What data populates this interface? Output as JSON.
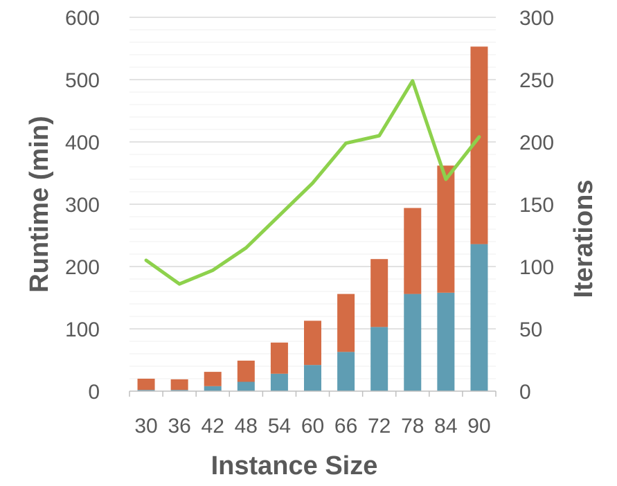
{
  "chart_data": {
    "type": "bar",
    "stacked": true,
    "categories": [
      "30",
      "36",
      "42",
      "48",
      "54",
      "60",
      "66",
      "72",
      "78",
      "84",
      "90"
    ],
    "series": [
      {
        "kind": "bar",
        "axis": "left",
        "color": "#5f9db3",
        "values": [
          2,
          2,
          8,
          15,
          28,
          42,
          63,
          103,
          156,
          158,
          236
        ]
      },
      {
        "kind": "bar",
        "axis": "left",
        "color": "#d46c45",
        "values": [
          18,
          17,
          23,
          34,
          50,
          71,
          93,
          109,
          138,
          204,
          317
        ]
      },
      {
        "kind": "line",
        "axis": "right",
        "color": "#8dd14c",
        "values": [
          105,
          86,
          97,
          115,
          141,
          167,
          199,
          205,
          249,
          170,
          204
        ]
      }
    ],
    "xlabel": "Instance Size",
    "ylabel": "Runtime (min)",
    "y2label": "Iterations",
    "ylim": [
      0,
      600
    ],
    "y2lim": [
      0,
      300
    ],
    "yticks": [
      "0",
      "100",
      "200",
      "300",
      "400",
      "500",
      "600"
    ],
    "y2ticks": [
      "0",
      "50",
      "100",
      "150",
      "200",
      "250",
      "300"
    ],
    "grid": true
  }
}
